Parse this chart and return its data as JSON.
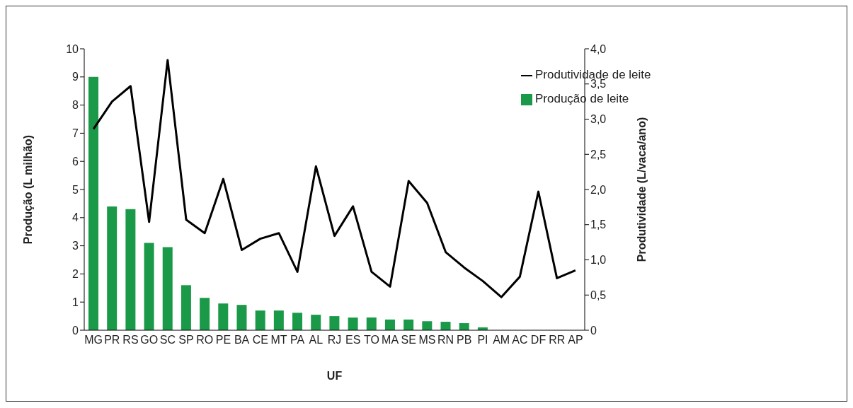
{
  "chart_data": {
    "type": "bar",
    "xlabel": "UF",
    "ylabel": "Produção (L milhão)",
    "y2label": "Produtividade (L/vaca/ano)",
    "categories": [
      "MG",
      "PR",
      "RS",
      "GO",
      "SC",
      "SP",
      "RO",
      "PE",
      "BA",
      "CE",
      "MT",
      "PA",
      "AL",
      "RJ",
      "ES",
      "TO",
      "MA",
      "SE",
      "MS",
      "RN",
      "PB",
      "PI",
      "AM",
      "AC",
      "DF",
      "RR",
      "AP"
    ],
    "series": [
      {
        "name": "Produção de leite",
        "color": "#1a9a48",
        "values": [
          9,
          4.4,
          4.3,
          3.1,
          2.95,
          1.6,
          1.15,
          0.95,
          0.9,
          0.7,
          0.7,
          0.62,
          0.55,
          0.5,
          0.45,
          0.45,
          0.38,
          0.38,
          0.32,
          0.3,
          0.25,
          0.1,
          0,
          0,
          0,
          0,
          0
        ]
      },
      {
        "name": "Produtividade de leite",
        "type": "line",
        "axis": "y2",
        "color": "#000000",
        "values": [
          2.86,
          3.25,
          3.47,
          1.54,
          3.84,
          1.57,
          1.38,
          2.15,
          1.14,
          1.3,
          1.38,
          0.83,
          2.33,
          1.34,
          1.76,
          0.83,
          0.62,
          2.12,
          1.81,
          1.11,
          0.89,
          0.7,
          0.47,
          0.76,
          1.97,
          0.74,
          0.85
        ]
      }
    ],
    "ylim": [
      0,
      10
    ],
    "yticks": [
      0,
      1,
      2,
      3,
      4,
      5,
      6,
      7,
      8,
      9,
      10
    ],
    "y2lim": [
      0,
      4
    ],
    "y2ticks": [
      0,
      {
        "value": 0.5,
        "label": "0,5"
      },
      {
        "value": 1,
        "label": "1,0"
      },
      {
        "value": 1.5,
        "label": "1,5"
      },
      {
        "value": 2,
        "label": "2,0"
      },
      {
        "value": 2.5,
        "label": "2,5"
      },
      {
        "value": 3,
        "label": "3,0"
      },
      {
        "value": 3.5,
        "label": "3,5"
      },
      {
        "value": 4,
        "label": "4,0"
      }
    ],
    "grid": false,
    "legend": "top right",
    "marker": "none",
    "line_style": "solid"
  }
}
